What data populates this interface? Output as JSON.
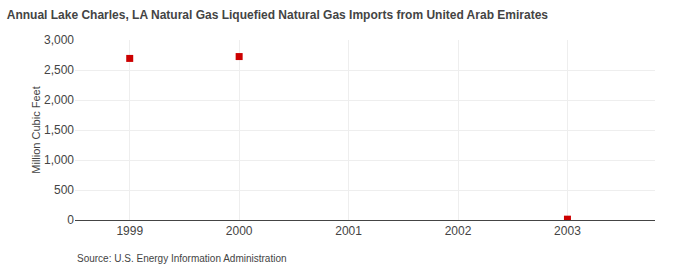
{
  "chart_data": {
    "type": "scatter",
    "title": "Annual Lake Charles, LA Natural Gas Liquefied Natural Gas Imports from United Arab Emirates",
    "y_label": "Million Cubic Feet",
    "annotations": [
      "Source: U.S. Energy Information Administration"
    ],
    "x": [
      1999,
      2000,
      2003
    ],
    "values": [
      2693,
      2724,
      14
    ],
    "color": "#cc0000",
    "marker": "square",
    "xlim": [
      1998.5,
      2003.8
    ],
    "xticks": [
      1999,
      2000,
      2001,
      2002,
      2003
    ],
    "ylim": [
      0,
      3000
    ],
    "yticks": [
      0,
      500,
      {
        "value": 1000,
        "label": "1,000"
      },
      {
        "value": 1500,
        "label": "1,500"
      },
      {
        "value": 2000,
        "label": "2,000"
      },
      {
        "value": 2500,
        "label": "2,500"
      },
      {
        "value": 3000,
        "label": "3,000"
      }
    ],
    "grid": true
  }
}
